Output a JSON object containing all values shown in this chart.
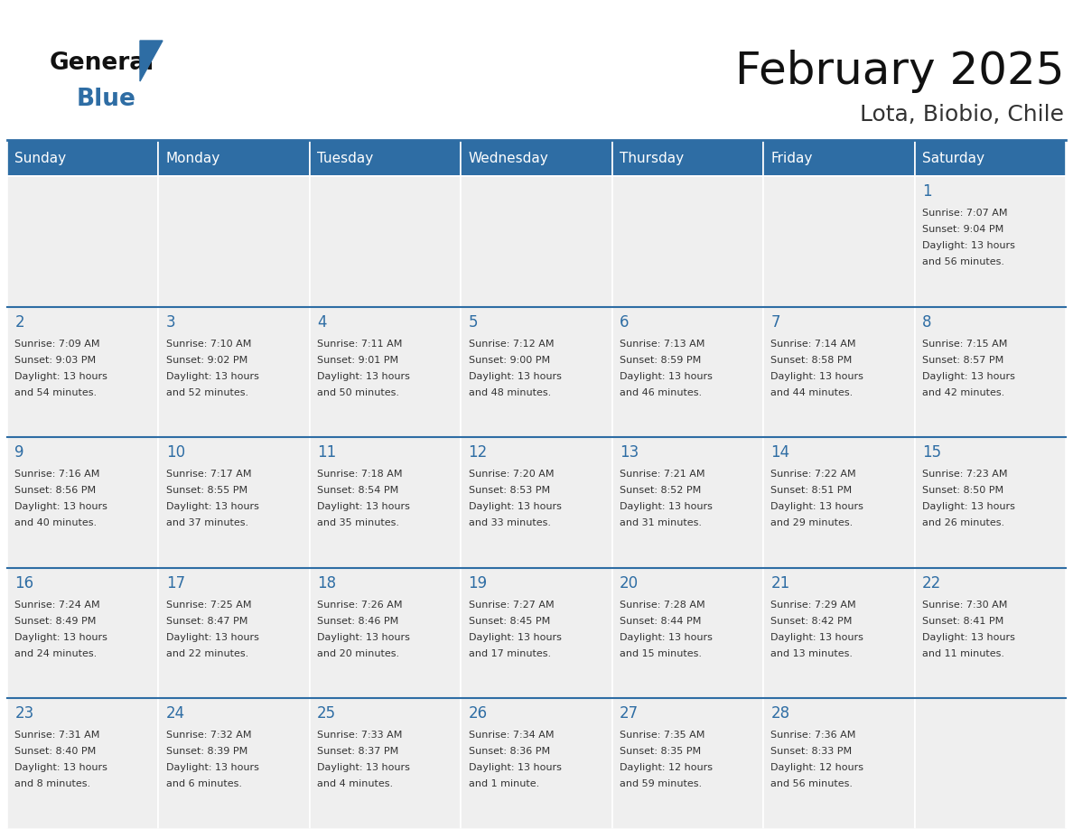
{
  "title": "February 2025",
  "subtitle": "Lota, Biobio, Chile",
  "header_bg": "#2E6DA4",
  "header_text_color": "#FFFFFF",
  "days_of_week": [
    "Sunday",
    "Monday",
    "Tuesday",
    "Wednesday",
    "Thursday",
    "Friday",
    "Saturday"
  ],
  "cell_bg": "#EFEFEF",
  "cell_bg_white": "#FFFFFF",
  "row_border_color": "#2E6DA4",
  "col_border_color": "#FFFFFF",
  "day_number_color": "#2E6DA4",
  "info_text_color": "#333333",
  "bg_color": "#FFFFFF",
  "calendar": [
    [
      null,
      null,
      null,
      null,
      null,
      null,
      {
        "day": 1,
        "sunrise": "7:07 AM",
        "sunset": "9:04 PM",
        "daylight": "13 hours and 56 minutes."
      }
    ],
    [
      {
        "day": 2,
        "sunrise": "7:09 AM",
        "sunset": "9:03 PM",
        "daylight": "13 hours and 54 minutes."
      },
      {
        "day": 3,
        "sunrise": "7:10 AM",
        "sunset": "9:02 PM",
        "daylight": "13 hours and 52 minutes."
      },
      {
        "day": 4,
        "sunrise": "7:11 AM",
        "sunset": "9:01 PM",
        "daylight": "13 hours and 50 minutes."
      },
      {
        "day": 5,
        "sunrise": "7:12 AM",
        "sunset": "9:00 PM",
        "daylight": "13 hours and 48 minutes."
      },
      {
        "day": 6,
        "sunrise": "7:13 AM",
        "sunset": "8:59 PM",
        "daylight": "13 hours and 46 minutes."
      },
      {
        "day": 7,
        "sunrise": "7:14 AM",
        "sunset": "8:58 PM",
        "daylight": "13 hours and 44 minutes."
      },
      {
        "day": 8,
        "sunrise": "7:15 AM",
        "sunset": "8:57 PM",
        "daylight": "13 hours and 42 minutes."
      }
    ],
    [
      {
        "day": 9,
        "sunrise": "7:16 AM",
        "sunset": "8:56 PM",
        "daylight": "13 hours and 40 minutes."
      },
      {
        "day": 10,
        "sunrise": "7:17 AM",
        "sunset": "8:55 PM",
        "daylight": "13 hours and 37 minutes."
      },
      {
        "day": 11,
        "sunrise": "7:18 AM",
        "sunset": "8:54 PM",
        "daylight": "13 hours and 35 minutes."
      },
      {
        "day": 12,
        "sunrise": "7:20 AM",
        "sunset": "8:53 PM",
        "daylight": "13 hours and 33 minutes."
      },
      {
        "day": 13,
        "sunrise": "7:21 AM",
        "sunset": "8:52 PM",
        "daylight": "13 hours and 31 minutes."
      },
      {
        "day": 14,
        "sunrise": "7:22 AM",
        "sunset": "8:51 PM",
        "daylight": "13 hours and 29 minutes."
      },
      {
        "day": 15,
        "sunrise": "7:23 AM",
        "sunset": "8:50 PM",
        "daylight": "13 hours and 26 minutes."
      }
    ],
    [
      {
        "day": 16,
        "sunrise": "7:24 AM",
        "sunset": "8:49 PM",
        "daylight": "13 hours and 24 minutes."
      },
      {
        "day": 17,
        "sunrise": "7:25 AM",
        "sunset": "8:47 PM",
        "daylight": "13 hours and 22 minutes."
      },
      {
        "day": 18,
        "sunrise": "7:26 AM",
        "sunset": "8:46 PM",
        "daylight": "13 hours and 20 minutes."
      },
      {
        "day": 19,
        "sunrise": "7:27 AM",
        "sunset": "8:45 PM",
        "daylight": "13 hours and 17 minutes."
      },
      {
        "day": 20,
        "sunrise": "7:28 AM",
        "sunset": "8:44 PM",
        "daylight": "13 hours and 15 minutes."
      },
      {
        "day": 21,
        "sunrise": "7:29 AM",
        "sunset": "8:42 PM",
        "daylight": "13 hours and 13 minutes."
      },
      {
        "day": 22,
        "sunrise": "7:30 AM",
        "sunset": "8:41 PM",
        "daylight": "13 hours and 11 minutes."
      }
    ],
    [
      {
        "day": 23,
        "sunrise": "7:31 AM",
        "sunset": "8:40 PM",
        "daylight": "13 hours and 8 minutes."
      },
      {
        "day": 24,
        "sunrise": "7:32 AM",
        "sunset": "8:39 PM",
        "daylight": "13 hours and 6 minutes."
      },
      {
        "day": 25,
        "sunrise": "7:33 AM",
        "sunset": "8:37 PM",
        "daylight": "13 hours and 4 minutes."
      },
      {
        "day": 26,
        "sunrise": "7:34 AM",
        "sunset": "8:36 PM",
        "daylight": "13 hours and 1 minute."
      },
      {
        "day": 27,
        "sunrise": "7:35 AM",
        "sunset": "8:35 PM",
        "daylight": "12 hours and 59 minutes."
      },
      {
        "day": 28,
        "sunrise": "7:36 AM",
        "sunset": "8:33 PM",
        "daylight": "12 hours and 56 minutes."
      },
      null
    ]
  ]
}
